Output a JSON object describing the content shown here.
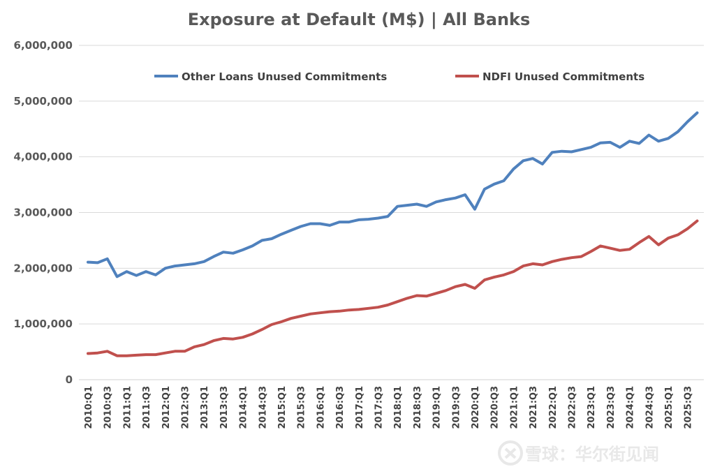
{
  "chart_data": {
    "type": "line",
    "title": "Exposure at Default (M$) | All Banks",
    "xlabel": "",
    "ylabel": "",
    "ylim": [
      0,
      6000000
    ],
    "yticks": [
      "0",
      "1,000,000",
      "2,000,000",
      "3,000,000",
      "4,000,000",
      "5,000,000",
      "6,000,000"
    ],
    "grid": true,
    "legend_position": "top",
    "x": [
      "2010:Q1",
      "2010:Q2",
      "2010:Q3",
      "2010:Q4",
      "2011:Q1",
      "2011:Q2",
      "2011:Q3",
      "2011:Q4",
      "2012:Q1",
      "2012:Q2",
      "2012:Q3",
      "2012:Q4",
      "2013:Q1",
      "2013:Q2",
      "2013:Q3",
      "2013:Q4",
      "2014:Q1",
      "2014:Q2",
      "2014:Q3",
      "2014:Q4",
      "2015:Q1",
      "2015:Q2",
      "2015:Q3",
      "2015:Q4",
      "2016:Q1",
      "2016:Q2",
      "2016:Q3",
      "2016:Q4",
      "2017:Q1",
      "2017:Q2",
      "2017:Q3",
      "2017:Q4",
      "2018:Q1",
      "2018:Q2",
      "2018:Q3",
      "2018:Q4",
      "2019:Q1",
      "2019:Q2",
      "2019:Q3",
      "2019:Q4",
      "2020:Q1",
      "2020:Q2",
      "2020:Q3",
      "2020:Q4",
      "2021:Q1",
      "2021:Q2",
      "2021:Q3",
      "2021:Q4",
      "2022:Q1",
      "2022:Q2",
      "2022:Q3",
      "2022:Q4",
      "2023:Q1",
      "2023:Q2",
      "2023:Q3",
      "2023:Q4",
      "2024:Q1",
      "2024:Q2",
      "2024:Q3",
      "2024:Q4",
      "2025:Q1",
      "2025:Q2",
      "2025:Q3",
      "2025:Q4"
    ],
    "series": [
      {
        "name": "Other Loans Unused Commitments",
        "color": "#4f81bd",
        "values": [
          2110000,
          2100000,
          2170000,
          1850000,
          1940000,
          1870000,
          1940000,
          1880000,
          2000000,
          2040000,
          2060000,
          2080000,
          2120000,
          2210000,
          2290000,
          2270000,
          2330000,
          2400000,
          2500000,
          2530000,
          2610000,
          2680000,
          2750000,
          2800000,
          2800000,
          2770000,
          2830000,
          2830000,
          2870000,
          2880000,
          2900000,
          2930000,
          3110000,
          3130000,
          3150000,
          3110000,
          3190000,
          3230000,
          3260000,
          3320000,
          3060000,
          3420000,
          3510000,
          3570000,
          3780000,
          3930000,
          3970000,
          3870000,
          4080000,
          4100000,
          4090000,
          4130000,
          4170000,
          4250000,
          4260000,
          4170000,
          4280000,
          4240000,
          4390000,
          4280000,
          4330000,
          4450000,
          4630000,
          4790000
        ]
      },
      {
        "name": "NDFI Unused Commitments",
        "color": "#c0504d",
        "values": [
          470000,
          480000,
          510000,
          430000,
          430000,
          440000,
          450000,
          450000,
          480000,
          510000,
          510000,
          590000,
          630000,
          700000,
          740000,
          730000,
          760000,
          820000,
          900000,
          990000,
          1040000,
          1100000,
          1140000,
          1180000,
          1200000,
          1220000,
          1230000,
          1250000,
          1260000,
          1280000,
          1300000,
          1340000,
          1400000,
          1460000,
          1510000,
          1500000,
          1550000,
          1600000,
          1670000,
          1710000,
          1640000,
          1790000,
          1840000,
          1880000,
          1940000,
          2040000,
          2080000,
          2060000,
          2120000,
          2160000,
          2190000,
          2210000,
          2300000,
          2400000,
          2360000,
          2320000,
          2340000,
          2460000,
          2570000,
          2420000,
          2540000,
          2600000,
          2710000,
          2850000
        ]
      }
    ]
  },
  "watermark": {
    "text": "雪球：华尔街见闻"
  }
}
